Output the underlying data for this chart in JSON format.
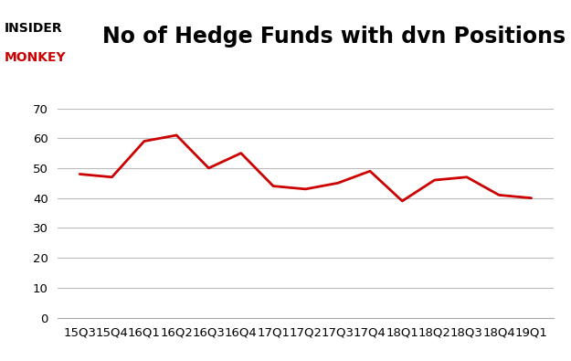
{
  "x_labels": [
    "15Q3",
    "15Q4",
    "16Q1",
    "16Q2",
    "16Q3",
    "16Q4",
    "17Q1",
    "17Q2",
    "17Q3",
    "17Q4",
    "18Q1",
    "18Q2",
    "18Q3",
    "18Q4",
    "19Q1"
  ],
  "y_values": [
    48,
    47,
    59,
    61,
    50,
    55,
    44,
    43,
    45,
    49,
    39,
    46,
    47,
    41,
    40
  ],
  "line_color": "#cc0000",
  "line_width": 2.0,
  "title": "No of Hedge Funds with dvn Positions",
  "title_fontsize": 17,
  "legend_label": "No of Hedge Funds with dvn Positions",
  "ylim": [
    0,
    70
  ],
  "yticks": [
    0,
    10,
    20,
    30,
    40,
    50,
    60,
    70
  ],
  "background_color": "#ffffff",
  "grid_color": "#bbbbbb",
  "figure_width": 6.25,
  "figure_height": 3.95,
  "tick_fontsize": 9.5,
  "legend_fontsize": 9
}
